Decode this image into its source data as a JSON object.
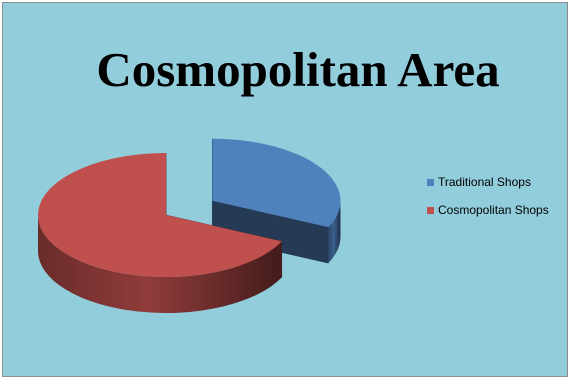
{
  "chart_data": {
    "type": "pie",
    "title": "Cosmopolitan Area",
    "categories": [
      "Traditional Shops",
      "Cosmopolitan Shops"
    ],
    "values": [
      32,
      68
    ],
    "colors": {
      "Traditional Shops": "#4f81bd",
      "Cosmopolitan Shops": "#c0504d"
    },
    "exploded": "Traditional Shops",
    "three_d": true,
    "legend_position": "right"
  },
  "colors": {
    "background": "#92cddc",
    "border": "#8c8c8c"
  }
}
